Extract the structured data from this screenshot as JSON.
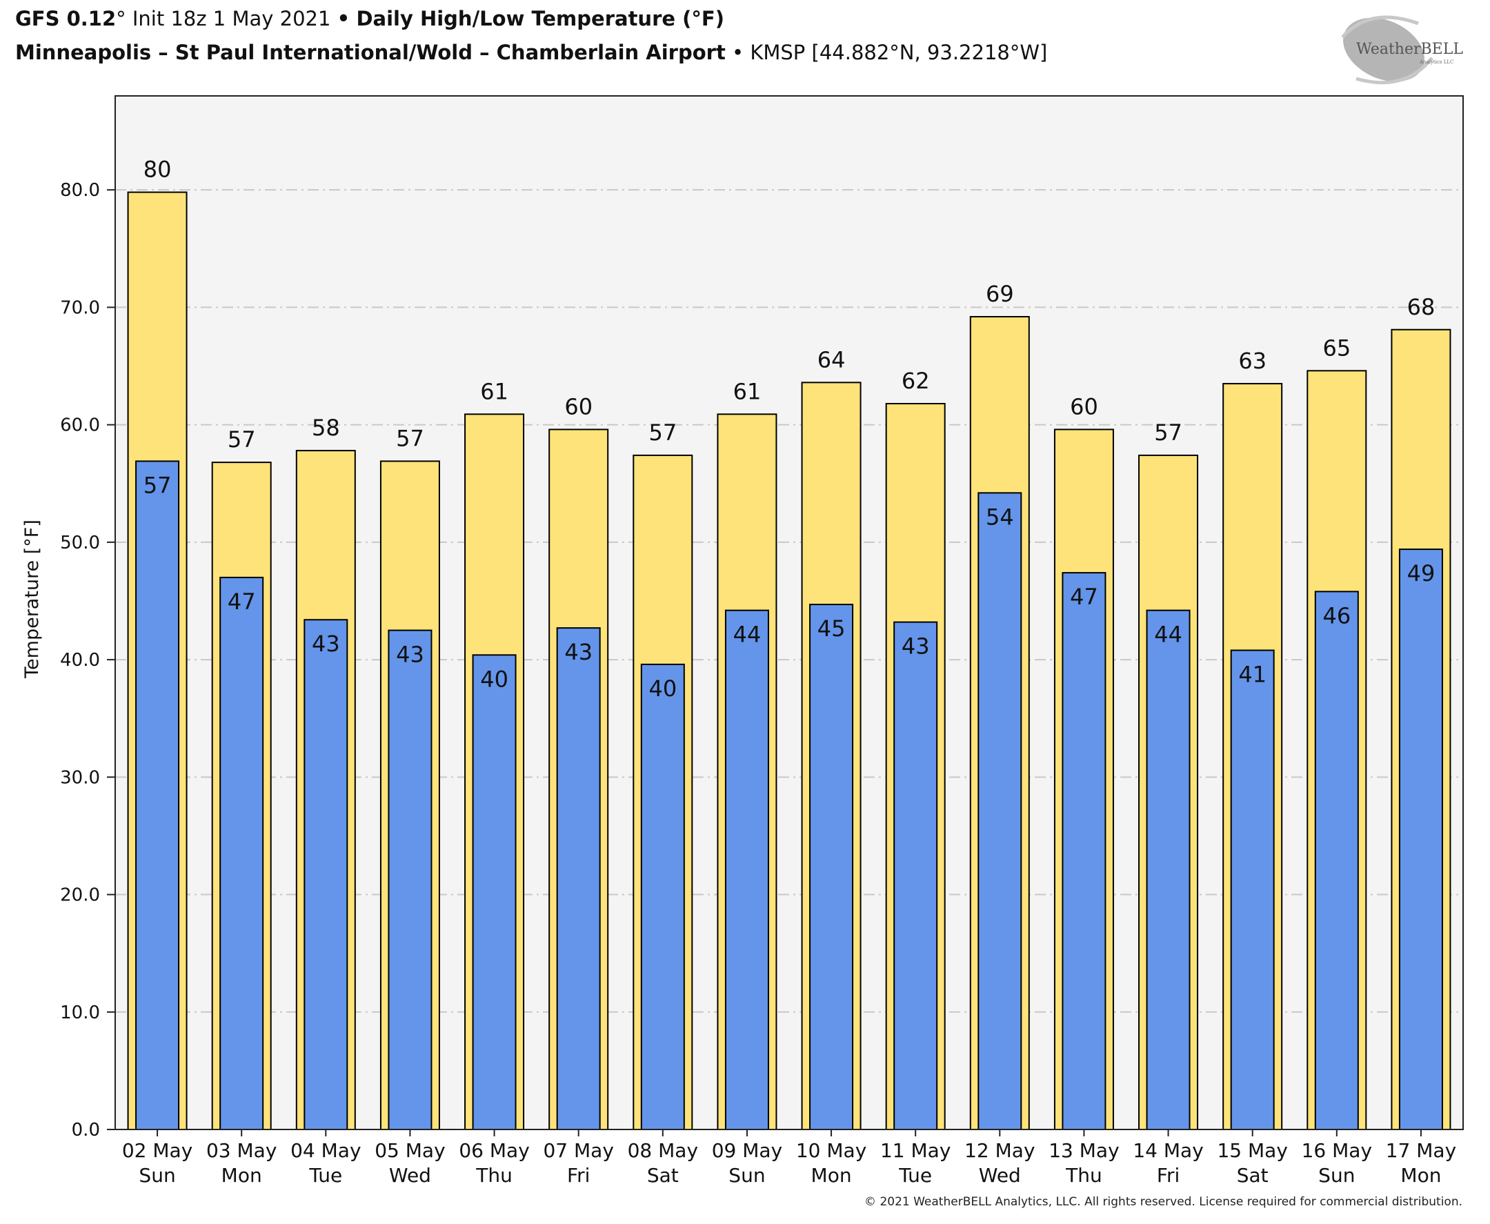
{
  "header": {
    "model": "GFS 0.12",
    "degree_symbol": "°",
    "init": "Init 18z 1 May 2021",
    "bullet": "•",
    "product": "Daily High/Low Temperature (°F)",
    "station_name": "Minneapolis – St Paul International/Wold – Chamberlain Airport",
    "station_info": "KMSP [44.882°N, 93.2218°W]"
  },
  "logo": {
    "name": "WeatherBELL",
    "sub": "Analytics LLC"
  },
  "footer": {
    "copyright": "© 2021 WeatherBELL Analytics, LLC. All rights reserved. License required for commercial distribution."
  },
  "colors": {
    "high": "#fde37a",
    "low": "#6495ea",
    "plot_bg": "#f4f4f4",
    "grid": "#c8c8c8",
    "edge": "#000000"
  },
  "chart_data": {
    "type": "bar",
    "title": "Daily High/Low Temperature (°F)",
    "xlabel": "",
    "ylabel": "Temperature [°F]",
    "ylim": [
      0,
      88
    ],
    "yticks": [
      0,
      10,
      20,
      30,
      40,
      50,
      60,
      70,
      80
    ],
    "ytick_labels": [
      "0.0",
      "10.0",
      "20.0",
      "30.0",
      "40.0",
      "50.0",
      "60.0",
      "70.0",
      "80.0"
    ],
    "grid": true,
    "categories": [
      "02 May",
      "03 May",
      "04 May",
      "05 May",
      "06 May",
      "07 May",
      "08 May",
      "09 May",
      "10 May",
      "11 May",
      "12 May",
      "13 May",
      "14 May",
      "15 May",
      "16 May",
      "17 May"
    ],
    "weekdays": [
      "Sun",
      "Mon",
      "Tue",
      "Wed",
      "Thu",
      "Fri",
      "Sat",
      "Sun",
      "Mon",
      "Tue",
      "Wed",
      "Thu",
      "Fri",
      "Sat",
      "Sun",
      "Mon"
    ],
    "series": [
      {
        "name": "High",
        "values": [
          79.8,
          56.8,
          57.8,
          56.9,
          60.9,
          59.6,
          57.4,
          60.9,
          63.6,
          61.8,
          69.2,
          59.6,
          57.4,
          63.5,
          64.6,
          68.1
        ],
        "labels": [
          "80",
          "57",
          "58",
          "57",
          "61",
          "60",
          "57",
          "61",
          "64",
          "62",
          "69",
          "60",
          "57",
          "63",
          "65",
          "68"
        ]
      },
      {
        "name": "Low",
        "values": [
          56.9,
          47.0,
          43.4,
          42.5,
          40.4,
          42.7,
          39.6,
          44.2,
          44.7,
          43.2,
          54.2,
          47.4,
          44.2,
          40.8,
          45.8,
          49.4
        ],
        "labels": [
          "57",
          "47",
          "43",
          "43",
          "40",
          "43",
          "40",
          "44",
          "45",
          "43",
          "54",
          "47",
          "44",
          "41",
          "46",
          "49"
        ]
      }
    ]
  }
}
